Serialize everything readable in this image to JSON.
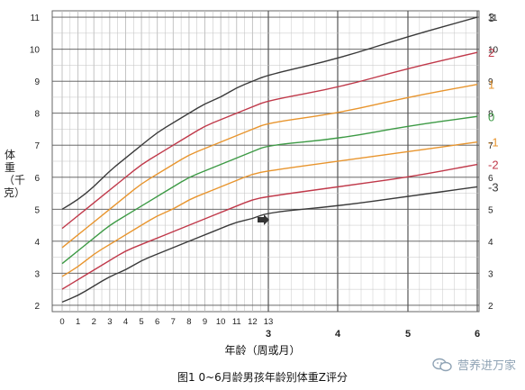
{
  "chart_data": {
    "type": "line",
    "title": "",
    "caption": "图1  0~6月龄男孩年龄别体重Z评分",
    "xlabel": "年龄（周或月）",
    "ylabel": "体重（千克）",
    "x_tick_labels_weeks": [
      "0",
      "1",
      "2",
      "3",
      "4",
      "5",
      "6",
      "7",
      "8",
      "9",
      "10",
      "11",
      "12",
      "13"
    ],
    "x_tick_labels_months": [
      "3",
      "4",
      "5",
      "6"
    ],
    "y_ticks": [
      2,
      3,
      4,
      5,
      6,
      7,
      8,
      9,
      10,
      11
    ],
    "ylim": [
      1.8,
      11.2
    ],
    "x_unit": "weeks 0-13, then months 3-6",
    "grid": true,
    "series": [
      {
        "name": "3",
        "color": "#3a3a3a",
        "x": [
          0,
          1,
          2,
          3,
          4,
          5,
          6,
          7,
          8,
          9,
          10,
          11,
          12,
          13,
          4,
          5,
          6
        ],
        "x_units": "w,w,w,w,w,w,w,w,w,w,w,w,w,w,m,m,m",
        "values": [
          5.0,
          5.3,
          5.7,
          6.2,
          6.6,
          7.0,
          7.4,
          7.7,
          8.0,
          8.3,
          8.5,
          8.8,
          9.0,
          9.2,
          9.7,
          10.4,
          11.0
        ]
      },
      {
        "name": "2",
        "color": "#c0394a",
        "x": [
          0,
          1,
          2,
          3,
          4,
          5,
          6,
          7,
          8,
          9,
          10,
          11,
          12,
          13,
          4,
          5,
          6
        ],
        "x_units": "w,w,w,w,w,w,w,w,w,w,w,w,w,w,m,m,m",
        "values": [
          4.4,
          4.8,
          5.2,
          5.6,
          6.0,
          6.4,
          6.7,
          7.0,
          7.3,
          7.6,
          7.8,
          8.0,
          8.2,
          8.4,
          8.8,
          9.4,
          9.9
        ]
      },
      {
        "name": "1",
        "color": "#e8952e",
        "x": [
          0,
          1,
          2,
          3,
          4,
          5,
          6,
          7,
          8,
          9,
          10,
          11,
          12,
          13,
          4,
          5,
          6
        ],
        "x_units": "w,w,w,w,w,w,w,w,w,w,w,w,w,w,m,m,m",
        "values": [
          3.8,
          4.2,
          4.6,
          5.0,
          5.4,
          5.8,
          6.1,
          6.4,
          6.7,
          6.9,
          7.1,
          7.3,
          7.5,
          7.7,
          8.0,
          8.5,
          8.9
        ]
      },
      {
        "name": "0",
        "color": "#3d9a45",
        "x": [
          0,
          1,
          2,
          3,
          4,
          5,
          6,
          7,
          8,
          9,
          10,
          11,
          12,
          13,
          4,
          5,
          6
        ],
        "x_units": "w,w,w,w,w,w,w,w,w,w,w,w,w,w,m,m,m",
        "values": [
          3.3,
          3.7,
          4.1,
          4.5,
          4.8,
          5.1,
          5.4,
          5.7,
          6.0,
          6.2,
          6.4,
          6.6,
          6.8,
          7.0,
          7.2,
          7.6,
          7.9
        ]
      },
      {
        "name": "-1",
        "color": "#e8952e",
        "x": [
          0,
          1,
          2,
          3,
          4,
          5,
          6,
          7,
          8,
          9,
          10,
          11,
          12,
          13,
          4,
          5,
          6
        ],
        "x_units": "w,w,w,w,w,w,w,w,w,w,w,w,w,w,m,m,m",
        "values": [
          2.9,
          3.2,
          3.6,
          3.9,
          4.2,
          4.5,
          4.8,
          5.0,
          5.3,
          5.5,
          5.7,
          5.9,
          6.1,
          6.2,
          6.5,
          6.8,
          7.1
        ]
      },
      {
        "name": "-2",
        "color": "#c0394a",
        "x": [
          0,
          1,
          2,
          3,
          4,
          5,
          6,
          7,
          8,
          9,
          10,
          11,
          12,
          13,
          4,
          5,
          6
        ],
        "x_units": "w,w,w,w,w,w,w,w,w,w,w,w,w,w,m,m,m",
        "values": [
          2.5,
          2.8,
          3.1,
          3.4,
          3.7,
          3.9,
          4.1,
          4.3,
          4.5,
          4.7,
          4.9,
          5.1,
          5.3,
          5.4,
          5.7,
          6.0,
          6.4
        ]
      },
      {
        "name": "-3",
        "color": "#3a3a3a",
        "x": [
          0,
          1,
          2,
          3,
          4,
          5,
          6,
          7,
          8,
          9,
          10,
          11,
          12,
          13,
          4,
          5,
          6
        ],
        "x_units": "w,w,w,w,w,w,w,w,w,w,w,w,w,w,m,m,m",
        "values": [
          2.1,
          2.3,
          2.6,
          2.9,
          3.1,
          3.4,
          3.6,
          3.8,
          4.0,
          4.2,
          4.4,
          4.6,
          4.7,
          4.9,
          5.1,
          5.4,
          5.7
        ]
      }
    ]
  },
  "watermark": {
    "text": "营养进万家",
    "icon": "wechat-bubble-icon"
  }
}
